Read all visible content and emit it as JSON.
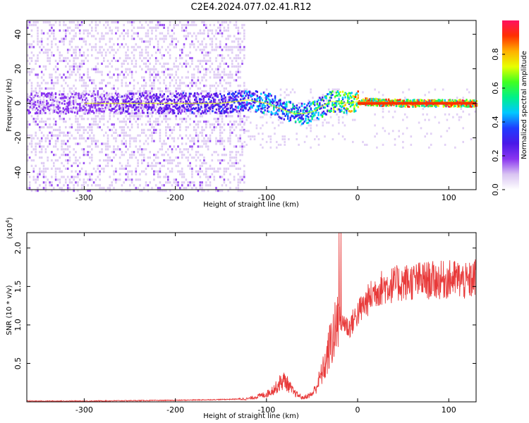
{
  "title": "C2E4.2024.077.02.41.R12",
  "colors": {
    "snr_line": "#e83a3a",
    "spectrogram_low": "#d7c3ef",
    "spectrogram_mid": "#6a1cf0",
    "colormap": [
      "#ffffff",
      "#d9c4f2",
      "#8a35f0",
      "#4a18e8",
      "#1f3cff",
      "#00c8ff",
      "#00f08a",
      "#40ff20",
      "#e8ff00",
      "#ffb000",
      "#ff3000",
      "#ff1060"
    ]
  },
  "chart_data": [
    {
      "type": "heatmap",
      "xlabel": "Height of straight line (km)",
      "ylabel": "Frequency (Hz)",
      "xlim": [
        -363,
        130
      ],
      "ylim": [
        -50,
        48
      ],
      "xticks": [
        -300,
        -200,
        -100,
        0,
        100
      ],
      "yticks": [
        -40,
        -20,
        0,
        20,
        40
      ],
      "colorbar": {
        "label": "Normalized spectral amplitude",
        "range": [
          0.0,
          1.0
        ],
        "ticks": [
          0.0,
          0.2,
          0.4,
          0.6,
          0.8
        ]
      },
      "ridge_trace": {
        "x": [
          -300,
          -250,
          -200,
          -150,
          -120,
          -100,
          -90,
          -80,
          -70,
          -60,
          -50,
          -40,
          -30,
          -20,
          -10,
          0,
          50,
          100,
          130
        ],
        "freq_hz": [
          0,
          0,
          0,
          0,
          2,
          0,
          -2,
          -4,
          -6,
          -6,
          -5,
          -2,
          1,
          1,
          0,
          1,
          0,
          0,
          0
        ],
        "amplitude": [
          0.2,
          0.25,
          0.3,
          0.35,
          0.45,
          0.5,
          0.5,
          0.5,
          0.55,
          0.55,
          0.6,
          0.6,
          0.65,
          0.7,
          0.8,
          0.9,
          0.95,
          0.95,
          0.95
        ]
      }
    },
    {
      "type": "line",
      "xlabel": "Height of straight line (km)",
      "ylabel": "SNR (10 * v/v)",
      "yscale_label": "(x10",
      "yscale_exp": "4",
      "yscale_close": ")",
      "xlim": [
        -363,
        130
      ],
      "ylim": [
        0,
        2.2
      ],
      "xticks": [
        -300,
        -200,
        -100,
        0,
        100
      ],
      "yticks": [
        0.5,
        1.0,
        1.5,
        2.0
      ],
      "ytick_labels": [
        "0.5",
        "1.0",
        "1.5",
        "2.0"
      ],
      "series": [
        {
          "x": [
            -363,
            -300,
            -250,
            -200,
            -150,
            -120,
            -110,
            -100,
            -90,
            -85,
            -80,
            -75,
            -70,
            -60,
            -50,
            -45,
            -40,
            -35,
            -30,
            -25,
            -22,
            -20,
            -18,
            -15,
            -10,
            -5,
            0,
            10,
            20,
            30,
            50,
            70,
            90,
            110,
            120,
            130
          ],
          "y": [
            0.01,
            0.01,
            0.015,
            0.02,
            0.03,
            0.04,
            0.07,
            0.1,
            0.18,
            0.25,
            0.28,
            0.2,
            0.12,
            0.05,
            0.1,
            0.2,
            0.35,
            0.5,
            0.75,
            0.9,
            1.0,
            1.15,
            1.0,
            1.05,
            0.95,
            1.05,
            1.15,
            1.3,
            1.45,
            1.5,
            1.55,
            1.58,
            1.58,
            1.6,
            1.55,
            1.62
          ]
        }
      ]
    }
  ]
}
